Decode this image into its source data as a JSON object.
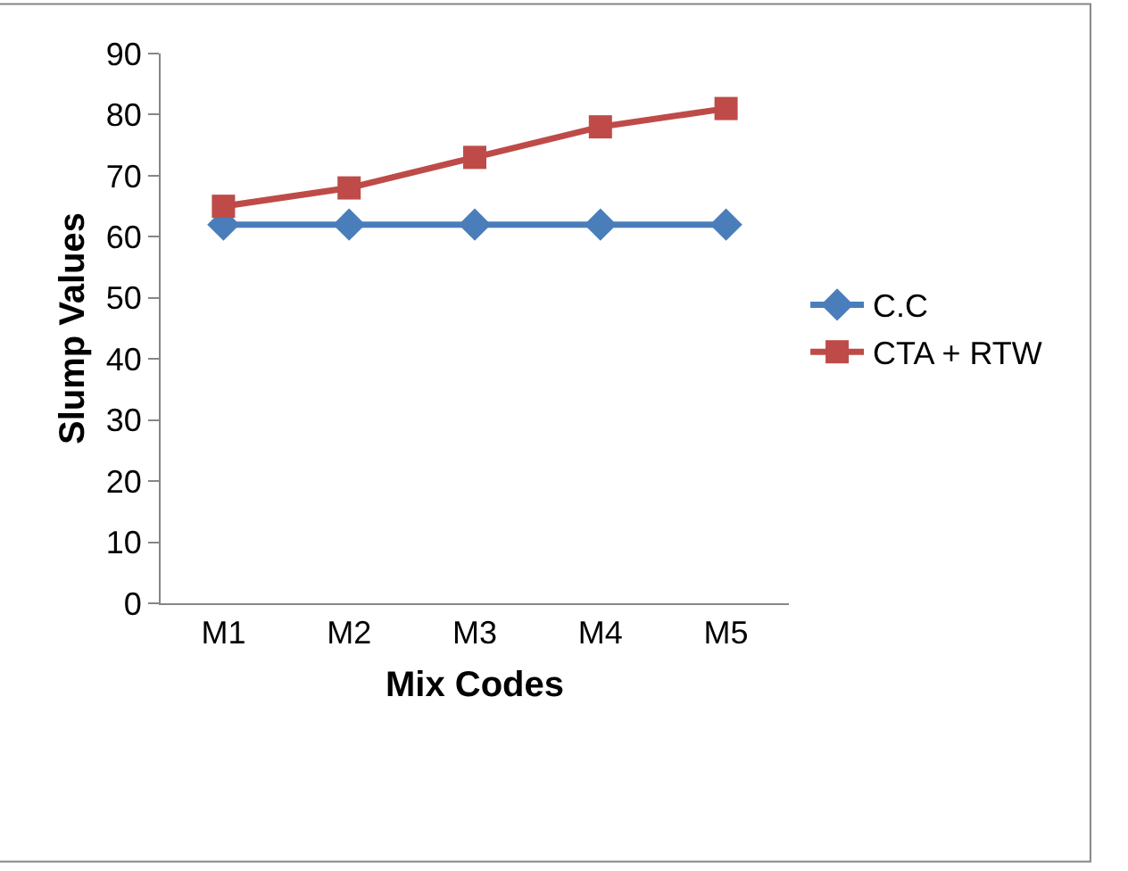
{
  "chart_data": {
    "type": "line",
    "xlabel": "Mix Codes",
    "ylabel": "Slump Values",
    "categories": [
      "M1",
      "M2",
      "M3",
      "M4",
      "M5"
    ],
    "series": [
      {
        "name": "C.C",
        "color": "#4a7ebb",
        "marker": "diamond",
        "values": [
          62,
          62,
          62,
          62,
          62
        ]
      },
      {
        "name": "CTA + RTW",
        "color": "#be4b48",
        "marker": "square",
        "values": [
          65,
          68,
          73,
          78,
          81
        ]
      }
    ],
    "ylim": [
      0,
      90
    ],
    "yticks": [
      0,
      10,
      20,
      30,
      40,
      50,
      60,
      70,
      80,
      90
    ],
    "grid": false,
    "legend": "right",
    "line_style": "solid"
  }
}
